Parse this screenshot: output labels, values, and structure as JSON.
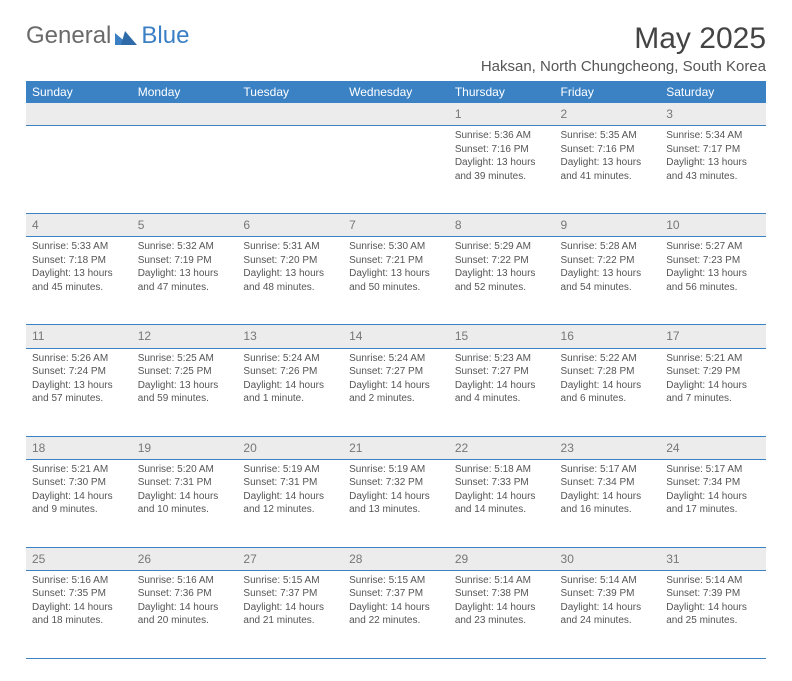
{
  "brand": {
    "general": "General",
    "blue": "Blue"
  },
  "title": "May 2025",
  "location": "Haksan, North Chungcheong, South Korea",
  "colors": {
    "header_bg": "#3b82c4",
    "header_text": "#ffffff",
    "daynum_bg": "#ececec",
    "daynum_text": "#777777",
    "cell_text": "#555555",
    "rule": "#3b82c4",
    "logo_gray": "#6a6a6a",
    "logo_blue": "#3b7fc4",
    "page_bg": "#ffffff"
  },
  "typography": {
    "title_fontsize": 30,
    "location_fontsize": 15,
    "header_fontsize": 12,
    "daynum_fontsize": 12,
    "cell_fontsize": 10
  },
  "day_headers": [
    "Sunday",
    "Monday",
    "Tuesday",
    "Wednesday",
    "Thursday",
    "Friday",
    "Saturday"
  ],
  "weeks": [
    {
      "nums": [
        "",
        "",
        "",
        "",
        "1",
        "2",
        "3"
      ],
      "cells": [
        null,
        null,
        null,
        null,
        {
          "sunrise": "Sunrise: 5:36 AM",
          "sunset": "Sunset: 7:16 PM",
          "d1": "Daylight: 13 hours",
          "d2": "and 39 minutes."
        },
        {
          "sunrise": "Sunrise: 5:35 AM",
          "sunset": "Sunset: 7:16 PM",
          "d1": "Daylight: 13 hours",
          "d2": "and 41 minutes."
        },
        {
          "sunrise": "Sunrise: 5:34 AM",
          "sunset": "Sunset: 7:17 PM",
          "d1": "Daylight: 13 hours",
          "d2": "and 43 minutes."
        }
      ]
    },
    {
      "nums": [
        "4",
        "5",
        "6",
        "7",
        "8",
        "9",
        "10"
      ],
      "cells": [
        {
          "sunrise": "Sunrise: 5:33 AM",
          "sunset": "Sunset: 7:18 PM",
          "d1": "Daylight: 13 hours",
          "d2": "and 45 minutes."
        },
        {
          "sunrise": "Sunrise: 5:32 AM",
          "sunset": "Sunset: 7:19 PM",
          "d1": "Daylight: 13 hours",
          "d2": "and 47 minutes."
        },
        {
          "sunrise": "Sunrise: 5:31 AM",
          "sunset": "Sunset: 7:20 PM",
          "d1": "Daylight: 13 hours",
          "d2": "and 48 minutes."
        },
        {
          "sunrise": "Sunrise: 5:30 AM",
          "sunset": "Sunset: 7:21 PM",
          "d1": "Daylight: 13 hours",
          "d2": "and 50 minutes."
        },
        {
          "sunrise": "Sunrise: 5:29 AM",
          "sunset": "Sunset: 7:22 PM",
          "d1": "Daylight: 13 hours",
          "d2": "and 52 minutes."
        },
        {
          "sunrise": "Sunrise: 5:28 AM",
          "sunset": "Sunset: 7:22 PM",
          "d1": "Daylight: 13 hours",
          "d2": "and 54 minutes."
        },
        {
          "sunrise": "Sunrise: 5:27 AM",
          "sunset": "Sunset: 7:23 PM",
          "d1": "Daylight: 13 hours",
          "d2": "and 56 minutes."
        }
      ]
    },
    {
      "nums": [
        "11",
        "12",
        "13",
        "14",
        "15",
        "16",
        "17"
      ],
      "cells": [
        {
          "sunrise": "Sunrise: 5:26 AM",
          "sunset": "Sunset: 7:24 PM",
          "d1": "Daylight: 13 hours",
          "d2": "and 57 minutes."
        },
        {
          "sunrise": "Sunrise: 5:25 AM",
          "sunset": "Sunset: 7:25 PM",
          "d1": "Daylight: 13 hours",
          "d2": "and 59 minutes."
        },
        {
          "sunrise": "Sunrise: 5:24 AM",
          "sunset": "Sunset: 7:26 PM",
          "d1": "Daylight: 14 hours",
          "d2": "and 1 minute."
        },
        {
          "sunrise": "Sunrise: 5:24 AM",
          "sunset": "Sunset: 7:27 PM",
          "d1": "Daylight: 14 hours",
          "d2": "and 2 minutes."
        },
        {
          "sunrise": "Sunrise: 5:23 AM",
          "sunset": "Sunset: 7:27 PM",
          "d1": "Daylight: 14 hours",
          "d2": "and 4 minutes."
        },
        {
          "sunrise": "Sunrise: 5:22 AM",
          "sunset": "Sunset: 7:28 PM",
          "d1": "Daylight: 14 hours",
          "d2": "and 6 minutes."
        },
        {
          "sunrise": "Sunrise: 5:21 AM",
          "sunset": "Sunset: 7:29 PM",
          "d1": "Daylight: 14 hours",
          "d2": "and 7 minutes."
        }
      ]
    },
    {
      "nums": [
        "18",
        "19",
        "20",
        "21",
        "22",
        "23",
        "24"
      ],
      "cells": [
        {
          "sunrise": "Sunrise: 5:21 AM",
          "sunset": "Sunset: 7:30 PM",
          "d1": "Daylight: 14 hours",
          "d2": "and 9 minutes."
        },
        {
          "sunrise": "Sunrise: 5:20 AM",
          "sunset": "Sunset: 7:31 PM",
          "d1": "Daylight: 14 hours",
          "d2": "and 10 minutes."
        },
        {
          "sunrise": "Sunrise: 5:19 AM",
          "sunset": "Sunset: 7:31 PM",
          "d1": "Daylight: 14 hours",
          "d2": "and 12 minutes."
        },
        {
          "sunrise": "Sunrise: 5:19 AM",
          "sunset": "Sunset: 7:32 PM",
          "d1": "Daylight: 14 hours",
          "d2": "and 13 minutes."
        },
        {
          "sunrise": "Sunrise: 5:18 AM",
          "sunset": "Sunset: 7:33 PM",
          "d1": "Daylight: 14 hours",
          "d2": "and 14 minutes."
        },
        {
          "sunrise": "Sunrise: 5:17 AM",
          "sunset": "Sunset: 7:34 PM",
          "d1": "Daylight: 14 hours",
          "d2": "and 16 minutes."
        },
        {
          "sunrise": "Sunrise: 5:17 AM",
          "sunset": "Sunset: 7:34 PM",
          "d1": "Daylight: 14 hours",
          "d2": "and 17 minutes."
        }
      ]
    },
    {
      "nums": [
        "25",
        "26",
        "27",
        "28",
        "29",
        "30",
        "31"
      ],
      "cells": [
        {
          "sunrise": "Sunrise: 5:16 AM",
          "sunset": "Sunset: 7:35 PM",
          "d1": "Daylight: 14 hours",
          "d2": "and 18 minutes."
        },
        {
          "sunrise": "Sunrise: 5:16 AM",
          "sunset": "Sunset: 7:36 PM",
          "d1": "Daylight: 14 hours",
          "d2": "and 20 minutes."
        },
        {
          "sunrise": "Sunrise: 5:15 AM",
          "sunset": "Sunset: 7:37 PM",
          "d1": "Daylight: 14 hours",
          "d2": "and 21 minutes."
        },
        {
          "sunrise": "Sunrise: 5:15 AM",
          "sunset": "Sunset: 7:37 PM",
          "d1": "Daylight: 14 hours",
          "d2": "and 22 minutes."
        },
        {
          "sunrise": "Sunrise: 5:14 AM",
          "sunset": "Sunset: 7:38 PM",
          "d1": "Daylight: 14 hours",
          "d2": "and 23 minutes."
        },
        {
          "sunrise": "Sunrise: 5:14 AM",
          "sunset": "Sunset: 7:39 PM",
          "d1": "Daylight: 14 hours",
          "d2": "and 24 minutes."
        },
        {
          "sunrise": "Sunrise: 5:14 AM",
          "sunset": "Sunset: 7:39 PM",
          "d1": "Daylight: 14 hours",
          "d2": "and 25 minutes."
        }
      ]
    }
  ]
}
